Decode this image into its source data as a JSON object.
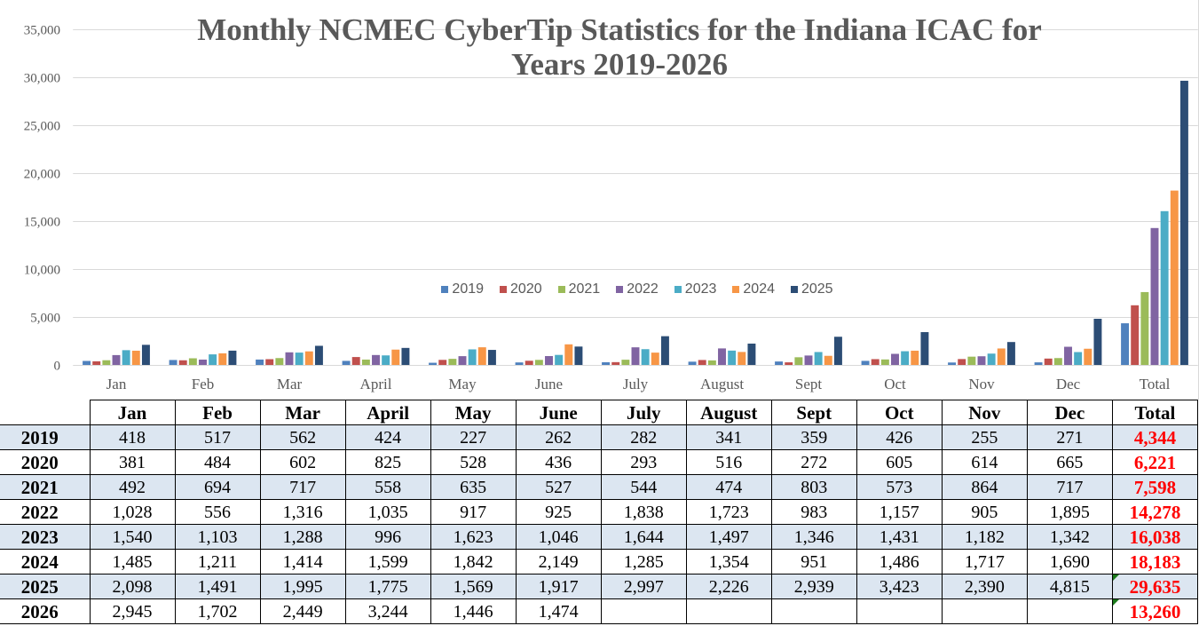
{
  "chart_data": {
    "type": "bar",
    "title": "Monthly NCMEC CyberTip Statistics for the Indiana ICAC for Years 2019-2026",
    "categories": [
      "Jan",
      "Feb",
      "Mar",
      "April",
      "May",
      "June",
      "July",
      "August",
      "Sept",
      "Oct",
      "Nov",
      "Dec",
      "Total"
    ],
    "series": [
      {
        "name": "2019",
        "color": "#4F81BD",
        "values": [
          418,
          517,
          562,
          424,
          227,
          262,
          282,
          341,
          359,
          426,
          255,
          271,
          4344
        ]
      },
      {
        "name": "2020",
        "color": "#C0504D",
        "values": [
          381,
          484,
          602,
          825,
          528,
          436,
          293,
          516,
          272,
          605,
          614,
          665,
          6221
        ]
      },
      {
        "name": "2021",
        "color": "#9BBB59",
        "values": [
          492,
          694,
          717,
          558,
          635,
          527,
          544,
          474,
          803,
          573,
          864,
          717,
          7598
        ]
      },
      {
        "name": "2022",
        "color": "#8064A2",
        "values": [
          1028,
          556,
          1316,
          1035,
          917,
          925,
          1838,
          1723,
          983,
          1157,
          905,
          1895,
          14278
        ]
      },
      {
        "name": "2023",
        "color": "#4BACC6",
        "values": [
          1540,
          1103,
          1288,
          996,
          1623,
          1046,
          1644,
          1497,
          1346,
          1431,
          1182,
          1342,
          16038
        ]
      },
      {
        "name": "2024",
        "color": "#F79646",
        "values": [
          1485,
          1211,
          1414,
          1599,
          1842,
          2149,
          1285,
          1354,
          951,
          1486,
          1717,
          1690,
          18183
        ]
      },
      {
        "name": "2025",
        "color": "#2C4D75",
        "values": [
          2098,
          1491,
          1995,
          1775,
          1569,
          1917,
          2997,
          2226,
          2939,
          3423,
          2390,
          4815,
          29635
        ]
      }
    ],
    "ylim": [
      0,
      35000
    ],
    "y_ticks": [
      {
        "value": 0,
        "label": "0"
      },
      {
        "value": 5000,
        "label": "5,000"
      },
      {
        "value": 10000,
        "label": "10,000"
      },
      {
        "value": 15000,
        "label": "15,000"
      },
      {
        "value": 20000,
        "label": "20,000"
      },
      {
        "value": 25000,
        "label": "25,000"
      },
      {
        "value": 30000,
        "label": "30,000"
      },
      {
        "value": 35000,
        "label": "35,000"
      }
    ],
    "grid": true,
    "legend_position": "center"
  },
  "table": {
    "total_color": "#FF0000",
    "shade_color": "#DCE6F1",
    "columns": [
      "Jan",
      "Feb",
      "Mar",
      "April",
      "May",
      "June",
      "July",
      "August",
      "Sept",
      "Oct",
      "Nov",
      "Dec",
      "Total"
    ],
    "rows": [
      {
        "label": "2019",
        "values": [
          "418",
          "517",
          "562",
          "424",
          "227",
          "262",
          "282",
          "341",
          "359",
          "426",
          "255",
          "271"
        ],
        "total": "4,344"
      },
      {
        "label": "2020",
        "values": [
          "381",
          "484",
          "602",
          "825",
          "528",
          "436",
          "293",
          "516",
          "272",
          "605",
          "614",
          "665"
        ],
        "total": "6,221"
      },
      {
        "label": "2021",
        "values": [
          "492",
          "694",
          "717",
          "558",
          "635",
          "527",
          "544",
          "474",
          "803",
          "573",
          "864",
          "717"
        ],
        "total": "7,598"
      },
      {
        "label": "2022",
        "values": [
          "1,028",
          "556",
          "1,316",
          "1,035",
          "917",
          "925",
          "1,838",
          "1,723",
          "983",
          "1,157",
          "905",
          "1,895"
        ],
        "total": "14,278"
      },
      {
        "label": "2023",
        "values": [
          "1,540",
          "1,103",
          "1,288",
          "996",
          "1,623",
          "1,046",
          "1,644",
          "1,497",
          "1,346",
          "1,431",
          "1,182",
          "1,342"
        ],
        "total": "16,038"
      },
      {
        "label": "2024",
        "values": [
          "1,485",
          "1,211",
          "1,414",
          "1,599",
          "1,842",
          "2,149",
          "1,285",
          "1,354",
          "951",
          "1,486",
          "1,717",
          "1,690"
        ],
        "total": "18,183"
      },
      {
        "label": "2025",
        "values": [
          "2,098",
          "1,491",
          "1,995",
          "1,775",
          "1,569",
          "1,917",
          "2,997",
          "2,226",
          "2,939",
          "3,423",
          "2,390",
          "4,815"
        ],
        "total": "29,635",
        "total_error_indicator": true
      },
      {
        "label": "2026",
        "values": [
          "2,945",
          "1,702",
          "2,449",
          "3,244",
          "1,446",
          "1,474",
          "",
          "",
          "",
          "",
          "",
          ""
        ],
        "total": "13,260",
        "total_error_indicator": true
      }
    ]
  }
}
